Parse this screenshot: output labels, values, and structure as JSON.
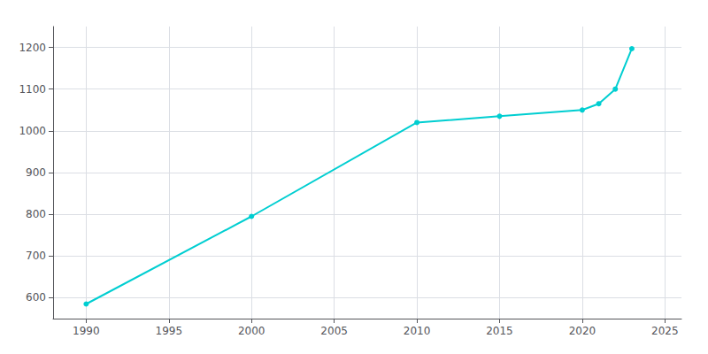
{
  "chart_data": {
    "type": "line",
    "x": [
      1990,
      2000,
      2010,
      2015,
      2020,
      2021,
      2022,
      2023
    ],
    "values": [
      585,
      795,
      1020,
      1035,
      1050,
      1065,
      1100,
      1197
    ],
    "color": "#00CED1",
    "marker": "circle",
    "xlim": [
      1988,
      2026
    ],
    "xticks": [
      1990,
      1995,
      2000,
      2005,
      2010,
      2015,
      2020,
      2025
    ],
    "ylim": [
      550,
      1250
    ],
    "yticks": [
      600,
      700,
      800,
      900,
      1000,
      1100,
      1200
    ],
    "grid": true
  }
}
